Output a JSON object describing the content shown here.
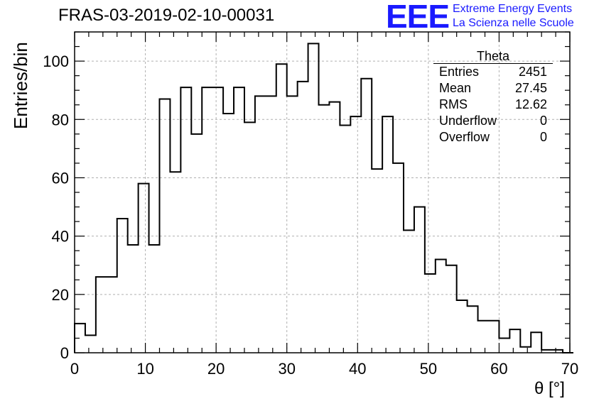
{
  "chart_data": {
    "type": "histogram",
    "title": "FRAS-03-2019-02-10-00031",
    "xlabel": "θ [°]",
    "ylabel": "Entries/bin",
    "xlim": [
      0,
      70
    ],
    "ylim": [
      0,
      110
    ],
    "x_ticks": [
      0,
      10,
      20,
      30,
      40,
      50,
      60,
      70
    ],
    "y_ticks": [
      0,
      20,
      40,
      60,
      80,
      100
    ],
    "grid": true,
    "bin_width": 1.5,
    "bins_start": 0,
    "values": [
      10,
      6,
      26,
      26,
      46,
      37,
      58,
      37,
      87,
      62,
      91,
      75,
      91,
      91,
      82,
      91,
      79,
      88,
      88,
      99,
      88,
      93,
      106,
      85,
      86,
      78,
      81,
      94,
      63,
      81,
      65,
      42,
      50,
      27,
      32,
      30,
      18,
      16,
      11,
      11,
      5,
      8,
      2,
      7,
      1,
      1,
      0
    ]
  },
  "stats_box": {
    "title": "Theta",
    "rows": [
      {
        "label": "Entries",
        "value": "2451"
      },
      {
        "label": "Mean",
        "value": "27.45"
      },
      {
        "label": "RMS",
        "value": "12.62"
      },
      {
        "label": "Underflow",
        "value": "0"
      },
      {
        "label": "Overflow",
        "value": "0"
      }
    ]
  },
  "logo": {
    "mark": "EEE",
    "line1": "Extreme Energy Events",
    "line2": "La Scienza nelle Scuole",
    "color": "#1a1aff"
  }
}
